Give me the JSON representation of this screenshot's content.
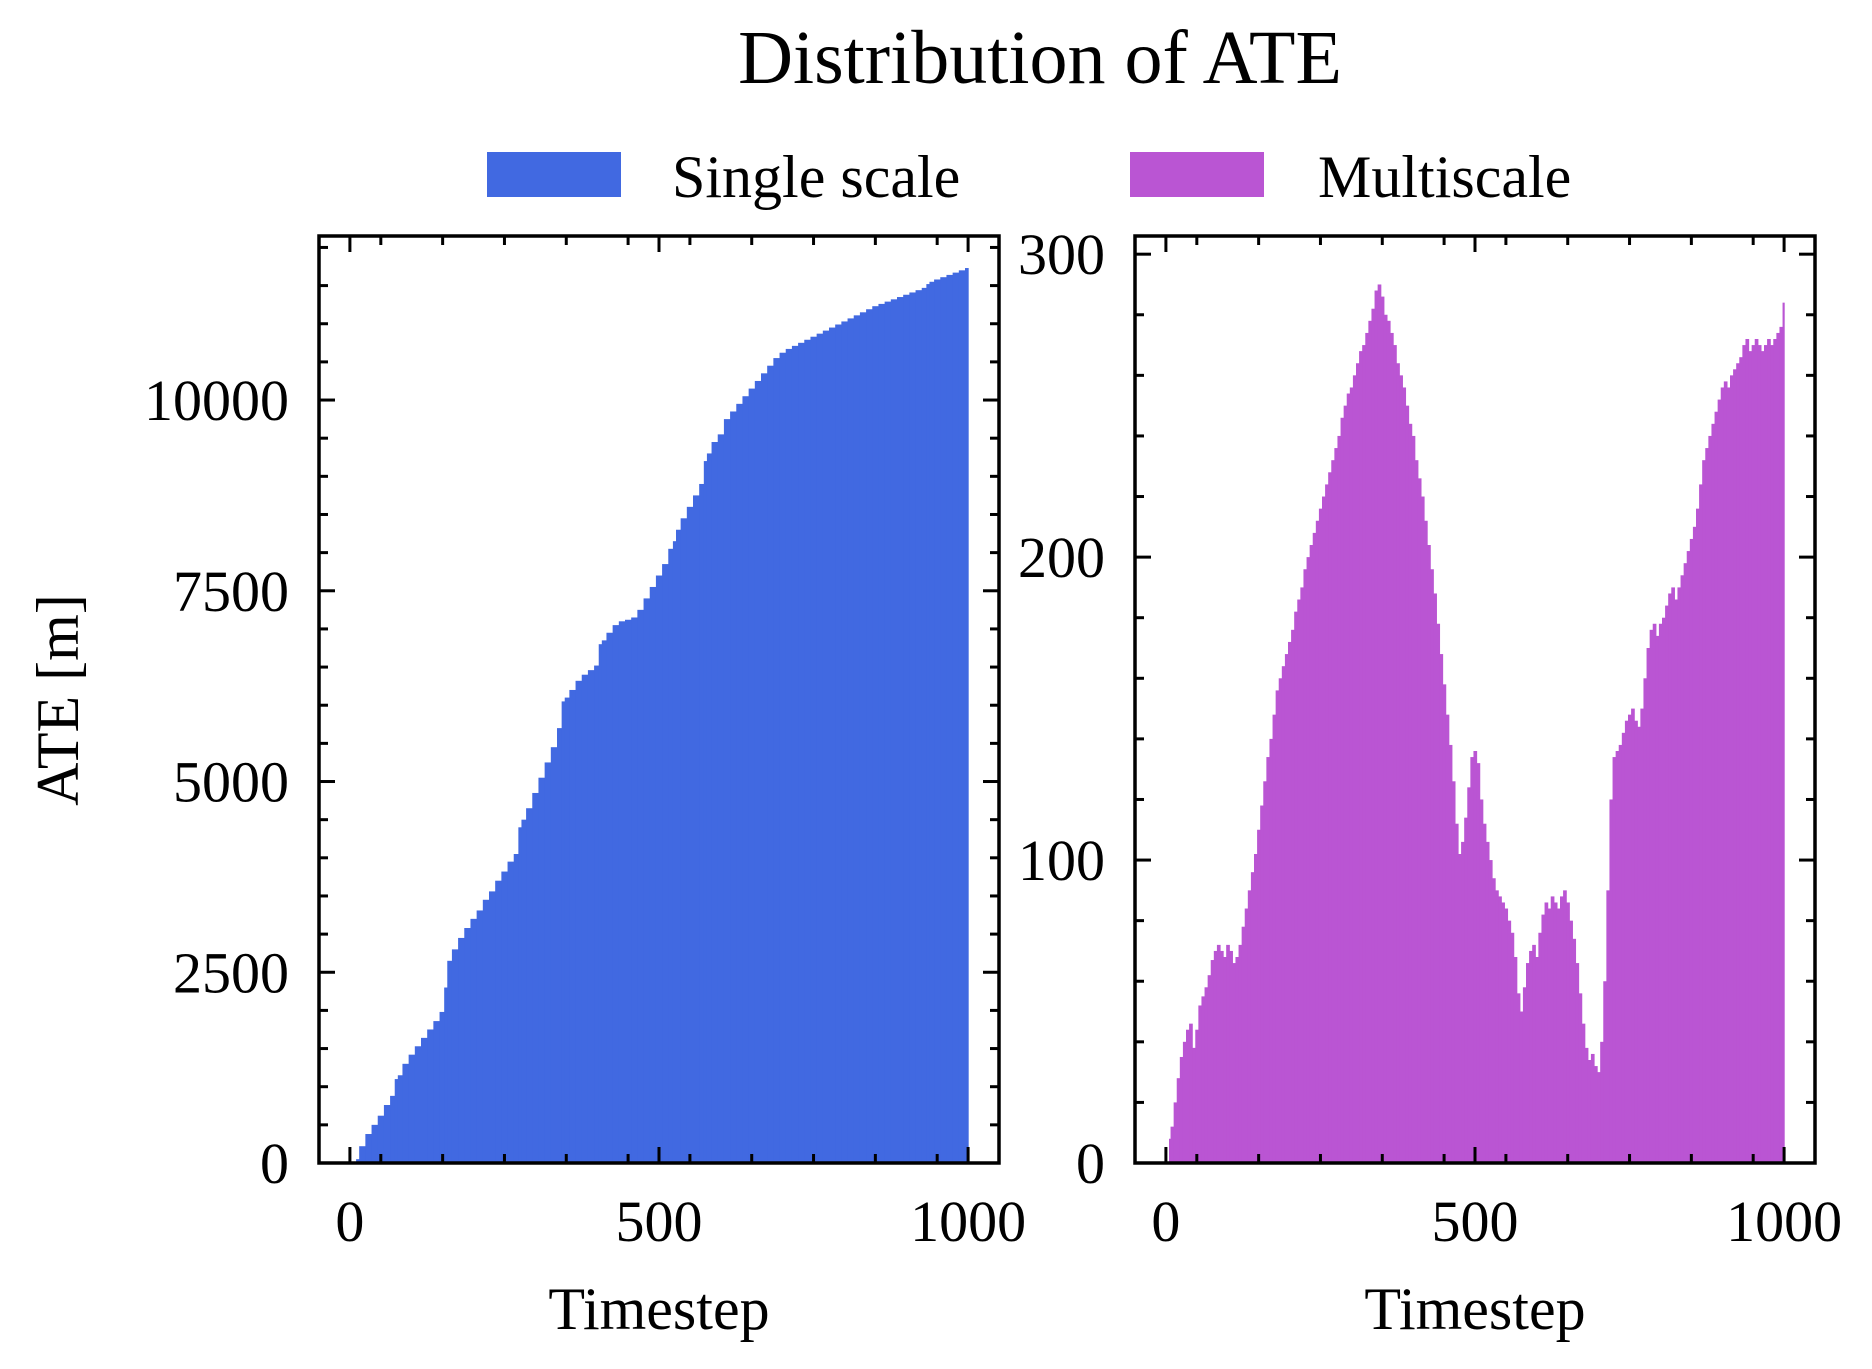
{
  "title": "Distribution of ATE",
  "legend": {
    "placement": "top-center",
    "items": [
      {
        "label": "Single scale",
        "color": "#4169E1"
      },
      {
        "label": "Multiscale",
        "color": "#BA55D3"
      }
    ]
  },
  "chart_data": [
    {
      "type": "area",
      "series": [
        {
          "name": "Single scale",
          "color": "#4169E1",
          "x": [
            10,
            20,
            30,
            40,
            50,
            60,
            70,
            75,
            80,
            90,
            100,
            110,
            120,
            130,
            140,
            150,
            155,
            160,
            170,
            180,
            190,
            200,
            210,
            220,
            230,
            240,
            250,
            260,
            270,
            275,
            280,
            290,
            300,
            310,
            320,
            330,
            340,
            345,
            350,
            360,
            370,
            380,
            390,
            400,
            405,
            410,
            420,
            430,
            440,
            450,
            460,
            470,
            480,
            490,
            500,
            510,
            520,
            525,
            530,
            540,
            550,
            560,
            570,
            575,
            580,
            590,
            600,
            610,
            620,
            630,
            640,
            650,
            660,
            670,
            680,
            690,
            700,
            710,
            720,
            730,
            740,
            750,
            760,
            770,
            780,
            790,
            800,
            810,
            820,
            830,
            840,
            850,
            860,
            870,
            880,
            890,
            900,
            910,
            920,
            930,
            935,
            940,
            950,
            960,
            970,
            980,
            990,
            1000
          ],
          "values": [
            50,
            220,
            380,
            500,
            620,
            760,
            880,
            1100,
            1150,
            1300,
            1420,
            1530,
            1640,
            1750,
            1860,
            1980,
            2300,
            2650,
            2800,
            2950,
            3080,
            3200,
            3310,
            3450,
            3560,
            3700,
            3820,
            3950,
            4050,
            4400,
            4500,
            4650,
            4850,
            5050,
            5250,
            5450,
            5700,
            6050,
            6100,
            6200,
            6320,
            6400,
            6460,
            6520,
            6800,
            6850,
            6950,
            7050,
            7100,
            7120,
            7150,
            7250,
            7400,
            7550,
            7700,
            7850,
            8050,
            8150,
            8300,
            8450,
            8600,
            8750,
            8900,
            9200,
            9300,
            9450,
            9550,
            9750,
            9850,
            9950,
            10050,
            10150,
            10250,
            10350,
            10450,
            10550,
            10620,
            10670,
            10710,
            10750,
            10790,
            10830,
            10870,
            10910,
            10950,
            10990,
            11030,
            11070,
            11110,
            11150,
            11190,
            11230,
            11260,
            11290,
            11320,
            11350,
            11380,
            11410,
            11440,
            11470,
            11520,
            11550,
            11580,
            11610,
            11640,
            11670,
            11700,
            11730
          ]
        }
      ],
      "xlabel": "Timestep",
      "ylabel": "ATE [m]",
      "xlim": [
        -50,
        1050
      ],
      "ylim": [
        0,
        12150
      ],
      "xticks": [
        0,
        500,
        1000
      ],
      "yticks": [
        0,
        2500,
        5000,
        7500,
        10000
      ],
      "xtick_labels": [
        "0",
        "500",
        "1000"
      ],
      "ytick_labels": [
        "0",
        "2500",
        "5000",
        "7500",
        "10000"
      ],
      "grid": false
    },
    {
      "type": "area",
      "series": [
        {
          "name": "Multiscale",
          "color": "#BA55D3",
          "x": [
            5,
            10,
            15,
            20,
            25,
            30,
            35,
            40,
            45,
            50,
            55,
            60,
            65,
            70,
            75,
            80,
            85,
            90,
            95,
            100,
            105,
            110,
            115,
            120,
            125,
            130,
            135,
            140,
            145,
            150,
            155,
            160,
            165,
            170,
            175,
            180,
            185,
            190,
            195,
            200,
            205,
            210,
            215,
            220,
            225,
            230,
            235,
            240,
            245,
            250,
            255,
            260,
            265,
            270,
            275,
            280,
            285,
            290,
            295,
            300,
            305,
            310,
            315,
            320,
            325,
            330,
            335,
            340,
            345,
            350,
            355,
            360,
            365,
            370,
            375,
            380,
            385,
            390,
            395,
            400,
            405,
            410,
            415,
            420,
            425,
            430,
            435,
            440,
            445,
            450,
            455,
            460,
            465,
            470,
            475,
            480,
            485,
            490,
            495,
            500,
            505,
            510,
            515,
            520,
            525,
            530,
            535,
            540,
            545,
            550,
            555,
            560,
            565,
            570,
            575,
            580,
            585,
            590,
            595,
            600,
            605,
            610,
            615,
            620,
            625,
            630,
            635,
            640,
            645,
            650,
            655,
            660,
            665,
            670,
            675,
            680,
            685,
            690,
            695,
            700,
            705,
            710,
            715,
            720,
            725,
            730,
            735,
            740,
            745,
            750,
            755,
            760,
            765,
            770,
            775,
            780,
            785,
            790,
            795,
            800,
            805,
            810,
            815,
            820,
            825,
            830,
            835,
            840,
            845,
            850,
            855,
            860,
            865,
            870,
            875,
            880,
            885,
            890,
            895,
            900,
            905,
            910,
            915,
            920,
            925,
            930,
            935,
            940,
            945,
            950,
            955,
            960,
            965,
            970,
            975,
            980,
            985,
            990,
            995,
            1000
          ],
          "values": [
            8,
            12,
            20,
            28,
            35,
            40,
            44,
            46,
            38,
            44,
            52,
            55,
            58,
            62,
            67,
            70,
            72,
            70,
            68,
            72,
            70,
            66,
            68,
            72,
            78,
            84,
            90,
            96,
            102,
            110,
            118,
            126,
            134,
            140,
            148,
            156,
            160,
            164,
            168,
            172,
            176,
            182,
            186,
            190,
            196,
            200,
            204,
            208,
            212,
            216,
            220,
            224,
            228,
            232,
            236,
            240,
            246,
            250,
            254,
            256,
            260,
            264,
            268,
            270,
            274,
            278,
            282,
            288,
            290,
            286,
            280,
            278,
            274,
            270,
            264,
            260,
            256,
            250,
            244,
            240,
            232,
            226,
            220,
            212,
            204,
            196,
            188,
            178,
            168,
            158,
            148,
            138,
            126,
            112,
            102,
            106,
            114,
            124,
            134,
            136,
            132,
            120,
            112,
            106,
            100,
            94,
            90,
            88,
            86,
            84,
            80,
            76,
            68,
            56,
            50,
            58,
            66,
            70,
            72,
            68,
            76,
            82,
            86,
            84,
            88,
            86,
            84,
            88,
            90,
            86,
            80,
            74,
            66,
            56,
            46,
            38,
            34,
            36,
            32,
            30,
            40,
            60,
            90,
            120,
            134,
            136,
            138,
            142,
            146,
            148,
            150,
            146,
            144,
            150,
            160,
            170,
            176,
            178,
            174,
            178,
            180,
            184,
            188,
            190,
            186,
            190,
            194,
            198,
            202,
            206,
            210,
            216,
            224,
            232,
            236,
            240,
            244,
            248,
            252,
            256,
            258,
            256,
            260,
            262,
            264,
            266,
            270,
            272,
            268,
            270,
            272,
            270,
            268,
            270,
            272,
            270,
            272,
            274,
            276,
            284
          ],
          "note": ""
        }
      ],
      "xlabel": "Timestep",
      "ylabel": "",
      "xlim": [
        -50,
        1050
      ],
      "ylim": [
        0,
        306
      ],
      "xticks": [
        0,
        500,
        1000
      ],
      "yticks": [
        0,
        100,
        200,
        300
      ],
      "xtick_labels": [
        "0",
        "500",
        "1000"
      ],
      "ytick_labels": [
        "0",
        "100",
        "200",
        "300"
      ],
      "grid": false
    }
  ]
}
